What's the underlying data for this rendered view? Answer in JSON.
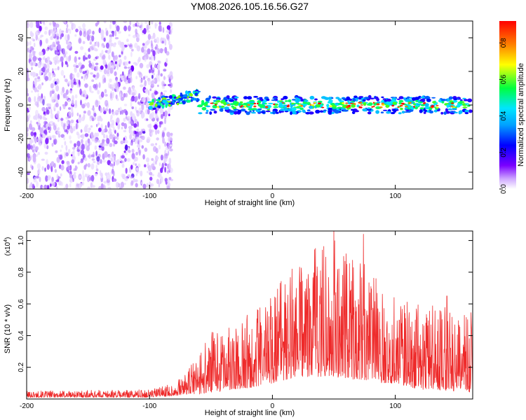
{
  "title": "YM08.2026.105.16.56.G27",
  "chart_data": [
    {
      "type": "heatmap",
      "name": "spectrogram",
      "xlabel": "Height of straight line (km)",
      "ylabel": "Frequency (Hz)",
      "xlim": [
        -200,
        163
      ],
      "ylim": [
        -50,
        50
      ],
      "xticks": [
        -200,
        -100,
        0,
        100
      ],
      "xtick_labels": [
        "-200",
        "-100",
        "0",
        "100"
      ],
      "yticks": [
        -40,
        -20,
        0,
        20,
        40
      ],
      "ytick_labels": [
        "-40",
        "-20",
        "0",
        "20",
        "40"
      ],
      "colorbar": {
        "label": "Normalized spectral amplitude",
        "range": [
          0,
          0.92
        ],
        "ticks": [
          0,
          0.2,
          0.4,
          0.6,
          0.8
        ],
        "tick_labels": [
          "0.0",
          "0.2",
          "0.4",
          "0.6",
          "0.8"
        ],
        "colormap": [
          "#ffffff",
          "#cfa8ff",
          "#7a00ff",
          "#0000ff",
          "#00e5ff",
          "#00ff40",
          "#ffff00",
          "#ff8000",
          "#ff0000"
        ]
      },
      "regions": [
        {
          "x": [
            -200,
            -82
          ],
          "description": "broadband noise, all frequencies",
          "amplitude": 0.1
        },
        {
          "x": [
            -100,
            -60
          ],
          "center_hz": [
            0,
            6
          ],
          "amplitude": 0.4
        },
        {
          "x": [
            -60,
            163
          ],
          "center_hz": 0,
          "half_width_hz": 5,
          "amplitude": 0.85
        }
      ]
    },
    {
      "type": "line",
      "name": "snr",
      "xlabel": "Height of straight line (km)",
      "ylabel": "SNR (10 * v/v)",
      "y_multiplier": "(x10",
      "y_multiplier_exp": "4",
      "xlim": [
        -200,
        163
      ],
      "ylim": [
        0,
        1.06
      ],
      "xticks": [
        -200,
        -100,
        0,
        100
      ],
      "xtick_labels": [
        "-200",
        "-100",
        "0",
        "100"
      ],
      "yticks": [
        0.2,
        0.4,
        0.6,
        0.8,
        1.0
      ],
      "ytick_labels": [
        "0.2",
        "0.4",
        "0.6",
        "0.8",
        "1.0"
      ],
      "color": "#ee2a2a",
      "envelope": {
        "x": [
          -200,
          -100,
          -80,
          -70,
          -60,
          -50,
          -40,
          -30,
          -20,
          -10,
          0,
          10,
          20,
          30,
          40,
          50,
          60,
          70,
          80,
          90,
          100,
          110,
          120,
          130,
          140,
          150,
          163
        ],
        "y_low": [
          0.01,
          0.01,
          0.02,
          0.03,
          0.03,
          0.04,
          0.05,
          0.06,
          0.07,
          0.08,
          0.1,
          0.12,
          0.14,
          0.14,
          0.14,
          0.14,
          0.13,
          0.12,
          0.12,
          0.1,
          0.1,
          0.08,
          0.06,
          0.06,
          0.05,
          0.05,
          0.04
        ],
        "y_high": [
          0.05,
          0.06,
          0.1,
          0.16,
          0.3,
          0.42,
          0.45,
          0.45,
          0.55,
          0.6,
          0.7,
          0.78,
          0.86,
          0.95,
          1.0,
          1.02,
          0.95,
          0.88,
          0.82,
          0.7,
          0.65,
          0.62,
          0.6,
          0.6,
          0.58,
          0.55,
          0.55
        ]
      },
      "peaks": [
        {
          "x": 35,
          "y": 0.95
        },
        {
          "x": 50,
          "y": 1.06
        },
        {
          "x": 74,
          "y": 1.04
        },
        {
          "x": 58,
          "y": 0.9
        },
        {
          "x": 142,
          "y": 0.65
        }
      ]
    }
  ]
}
